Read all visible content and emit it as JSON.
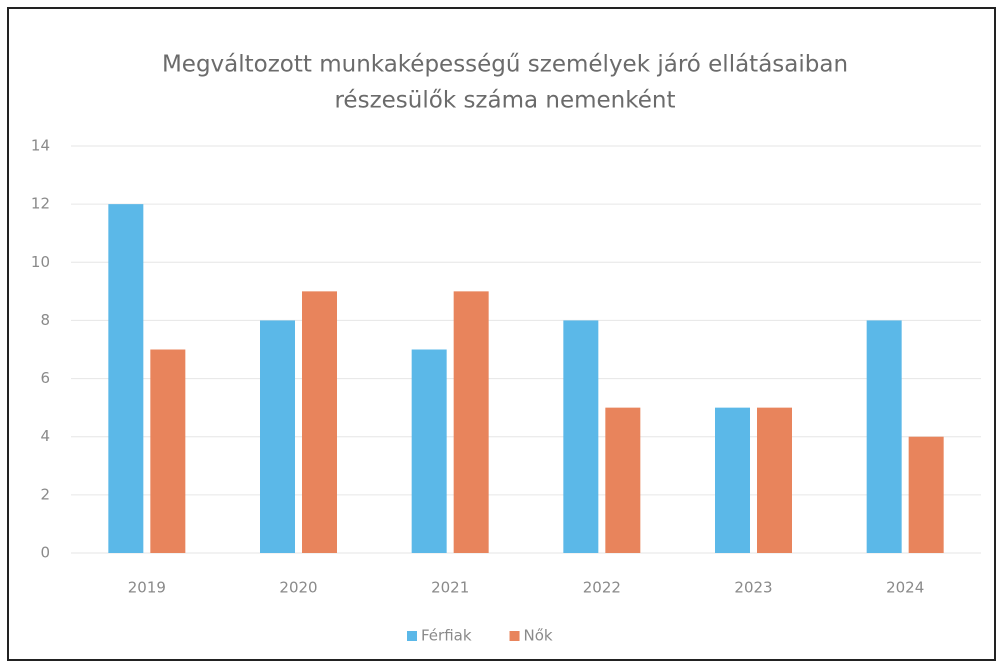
{
  "chart_data": {
    "type": "bar",
    "title": [
      "Megváltozott munkaképességű személyek járó ellátásaiban",
      "részesülők száma nemenként"
    ],
    "categories": [
      "2019",
      "2020",
      "2021",
      "2022",
      "2023",
      "2024"
    ],
    "series": [
      {
        "name": "Férfiak",
        "color": "#5bb8e8",
        "values": [
          12,
          8,
          7,
          8,
          5,
          8
        ]
      },
      {
        "name": "Nők",
        "color": "#e8845c",
        "values": [
          7,
          9,
          9,
          5,
          5,
          4
        ]
      }
    ],
    "ylim": [
      0,
      14
    ],
    "yticks": [
      0,
      2,
      4,
      6,
      8,
      10,
      12,
      14
    ],
    "grid": true,
    "legend": "bottom"
  }
}
